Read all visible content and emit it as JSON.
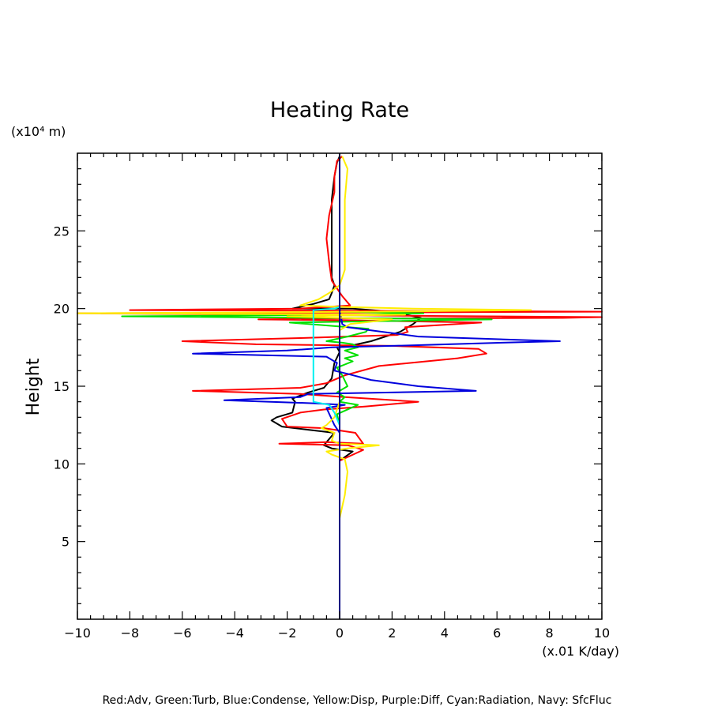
{
  "chart_data": {
    "type": "line",
    "title": "Heating Rate",
    "xlabel": "(x.01 K/day)",
    "ylabel": "Height",
    "y_unit": "(x10⁴ m)",
    "xlim": [
      -10,
      10
    ],
    "ylim": [
      0,
      30
    ],
    "x_ticks": [
      -10,
      -8,
      -6,
      -4,
      -2,
      0,
      2,
      4,
      6,
      8,
      10
    ],
    "x_tick_labels": [
      "−10",
      "−8",
      "−6",
      "−4",
      "−2",
      "0",
      "2",
      "4",
      "6",
      "8",
      "10"
    ],
    "y_ticks": [
      5,
      10,
      15,
      20,
      25
    ],
    "y_tick_labels": [
      "5",
      "10",
      "15",
      "20",
      "25"
    ],
    "grid": false,
    "legend_text": "Red:Adv, Green:Turb, Blue:Condense, Yellow:Disp, Purple:Diff, Cyan:Radiation, Navy: SfcFluc",
    "series": [
      {
        "color": "#000000",
        "points": [
          [
            0,
            6.2
          ],
          [
            0,
            10.2
          ],
          [
            0.5,
            10.8
          ],
          [
            -0.3,
            11.0
          ],
          [
            -0.6,
            11.2
          ],
          [
            -0.2,
            12.0
          ],
          [
            -1.2,
            12.2
          ],
          [
            -2.2,
            12.4
          ],
          [
            -2.6,
            12.8
          ],
          [
            -2.4,
            13.0
          ],
          [
            -1.8,
            13.3
          ],
          [
            -1.7,
            14.0
          ],
          [
            -1.8,
            14.2
          ],
          [
            -1.2,
            14.6
          ],
          [
            -0.6,
            14.9
          ],
          [
            -0.3,
            15.5
          ],
          [
            -0.2,
            16.5
          ],
          [
            0,
            17.2
          ],
          [
            -0.1,
            17.5
          ],
          [
            0.4,
            17.6
          ],
          [
            1.2,
            17.9
          ],
          [
            2.3,
            18.5
          ],
          [
            2.8,
            19.0
          ],
          [
            3.1,
            19.4
          ],
          [
            2.0,
            19.8
          ],
          [
            0.5,
            20.0
          ],
          [
            -1.8,
            20.0
          ],
          [
            -1.0,
            20.3
          ],
          [
            -0.4,
            20.6
          ],
          [
            -0.3,
            21.0
          ],
          [
            -0.2,
            21.5
          ],
          [
            -0.3,
            22.0
          ],
          [
            -0.3,
            23.0
          ],
          [
            -0.3,
            25.0
          ],
          [
            -0.3,
            27.0
          ],
          [
            -0.2,
            28.5
          ],
          [
            -0.1,
            29.4
          ],
          [
            0,
            29.8
          ]
        ]
      },
      {
        "color": "#ff0000",
        "points": [
          [
            0,
            10.2
          ],
          [
            0.9,
            10.9
          ],
          [
            0.3,
            11.2
          ],
          [
            -2.3,
            11.3
          ],
          [
            -0.5,
            11.4
          ],
          [
            0.9,
            11.3
          ],
          [
            0.6,
            12.0
          ],
          [
            -0.6,
            12.3
          ],
          [
            -2.0,
            12.4
          ],
          [
            -2.2,
            12.9
          ],
          [
            -1.5,
            13.3
          ],
          [
            -0.6,
            13.5
          ],
          [
            1.0,
            13.7
          ],
          [
            3.0,
            14.0
          ],
          [
            0.2,
            14.3
          ],
          [
            -1.5,
            14.5
          ],
          [
            -5.6,
            14.7
          ],
          [
            -1.5,
            14.9
          ],
          [
            -0.5,
            15.2
          ],
          [
            0.2,
            15.7
          ],
          [
            1.5,
            16.3
          ],
          [
            4.5,
            16.8
          ],
          [
            5.6,
            17.1
          ],
          [
            5.3,
            17.4
          ],
          [
            2.0,
            17.6
          ],
          [
            -3.2,
            17.7
          ],
          [
            -6.0,
            17.9
          ],
          [
            -1.5,
            18.1
          ],
          [
            2.2,
            18.3
          ],
          [
            2.6,
            18.5
          ],
          [
            2.5,
            18.8
          ],
          [
            5.4,
            19.1
          ],
          [
            2.0,
            19.2
          ],
          [
            -3.1,
            19.3
          ],
          [
            -0.5,
            19.35
          ],
          [
            8.5,
            19.4
          ],
          [
            10,
            19.45
          ],
          [
            1.5,
            19.55
          ],
          [
            -10,
            19.7
          ],
          [
            1.5,
            19.75
          ],
          [
            10,
            19.8
          ],
          [
            2.0,
            19.85
          ],
          [
            -8.0,
            19.9
          ],
          [
            -1.5,
            20.0
          ],
          [
            0.4,
            20.2
          ],
          [
            0.1,
            20.8
          ],
          [
            -0.3,
            21.8
          ],
          [
            -0.4,
            23.0
          ],
          [
            -0.5,
            24.5
          ],
          [
            -0.4,
            26.0
          ],
          [
            -0.2,
            27.5
          ],
          [
            -0.2,
            28.5
          ],
          [
            -0.1,
            29.5
          ],
          [
            0.1,
            29.8
          ]
        ]
      },
      {
        "color": "#00e000",
        "points": [
          [
            0,
            10.2
          ],
          [
            0,
            12.5
          ],
          [
            -0.1,
            13.2
          ],
          [
            0.7,
            13.8
          ],
          [
            0,
            14.0
          ],
          [
            0.2,
            14.3
          ],
          [
            -0.1,
            14.6
          ],
          [
            0.3,
            15.0
          ],
          [
            0.1,
            15.7
          ],
          [
            -0.1,
            16.2
          ],
          [
            0.5,
            16.6
          ],
          [
            0.2,
            16.8
          ],
          [
            0.7,
            17.0
          ],
          [
            0.2,
            17.3
          ],
          [
            0.7,
            17.5
          ],
          [
            0.5,
            17.7
          ],
          [
            0.1,
            17.8
          ],
          [
            -0.5,
            17.9
          ],
          [
            0.3,
            18.2
          ],
          [
            1.0,
            18.5
          ],
          [
            1.1,
            18.7
          ],
          [
            -1.9,
            19.1
          ],
          [
            2.0,
            19.2
          ],
          [
            5.8,
            19.3
          ],
          [
            -0.5,
            19.4
          ],
          [
            -8.3,
            19.5
          ],
          [
            1.0,
            19.6
          ],
          [
            3.2,
            19.7
          ],
          [
            0,
            19.8
          ],
          [
            0,
            30
          ]
        ]
      },
      {
        "color": "#0000dd",
        "points": [
          [
            0,
            1
          ],
          [
            0,
            12.0
          ],
          [
            -0.2,
            12.5
          ],
          [
            -0.5,
            13.6
          ],
          [
            0.2,
            13.8
          ],
          [
            -1.0,
            13.9
          ],
          [
            -4.4,
            14.1
          ],
          [
            -1.5,
            14.3
          ],
          [
            -1.2,
            14.5
          ],
          [
            5.2,
            14.7
          ],
          [
            3.0,
            15.0
          ],
          [
            1.2,
            15.4
          ],
          [
            0.3,
            15.8
          ],
          [
            -0.2,
            16.0
          ],
          [
            -0.1,
            16.5
          ],
          [
            -0.5,
            16.9
          ],
          [
            -5.6,
            17.1
          ],
          [
            -2.0,
            17.3
          ],
          [
            -0.3,
            17.5
          ],
          [
            2.0,
            17.6
          ],
          [
            6.2,
            17.8
          ],
          [
            8.4,
            17.9
          ],
          [
            3.0,
            18.2
          ],
          [
            1.2,
            18.6
          ],
          [
            0.3,
            18.8
          ],
          [
            0.1,
            19.0
          ],
          [
            0,
            20.0
          ],
          [
            0,
            30
          ]
        ]
      },
      {
        "color": "#ffee00",
        "points": [
          [
            0,
            6.5
          ],
          [
            0.2,
            8.0
          ],
          [
            0.3,
            9.5
          ],
          [
            0.2,
            10.3
          ],
          [
            -0.3,
            10.6
          ],
          [
            -0.5,
            10.8
          ],
          [
            0.3,
            11.0
          ],
          [
            1.5,
            11.2
          ],
          [
            0,
            11.3
          ],
          [
            -0.3,
            11.5
          ],
          [
            -0.2,
            12.0
          ],
          [
            -0.7,
            12.3
          ],
          [
            -0.5,
            12.5
          ],
          [
            -0.2,
            13.0
          ],
          [
            0,
            14.0
          ],
          [
            0,
            18.6
          ],
          [
            0.4,
            19.0
          ],
          [
            2.0,
            19.3
          ],
          [
            -2.0,
            19.5
          ],
          [
            2.5,
            19.6
          ],
          [
            -10,
            19.7
          ],
          [
            1.2,
            19.8
          ],
          [
            7.3,
            19.9
          ],
          [
            2.8,
            20.0
          ],
          [
            0.3,
            20.1
          ],
          [
            -1.5,
            20.2
          ],
          [
            -0.8,
            20.6
          ],
          [
            -0.4,
            21.0
          ],
          [
            0,
            21.5
          ],
          [
            0.2,
            22.5
          ],
          [
            0.2,
            25.0
          ],
          [
            0.2,
            27.0
          ],
          [
            0.3,
            29.0
          ],
          [
            0.1,
            29.8
          ]
        ]
      },
      {
        "color": "#00f0f0",
        "points": [
          [
            0,
            10.2
          ],
          [
            0,
            12.5
          ],
          [
            -0.2,
            13.3
          ],
          [
            -0.4,
            13.8
          ],
          [
            -1.0,
            14.0
          ],
          [
            -1.0,
            19.9
          ],
          [
            -0.2,
            20.0
          ],
          [
            0,
            20.1
          ]
        ]
      },
      {
        "color": "#000080",
        "points": [
          [
            0,
            0
          ],
          [
            0,
            30
          ]
        ]
      }
    ]
  }
}
